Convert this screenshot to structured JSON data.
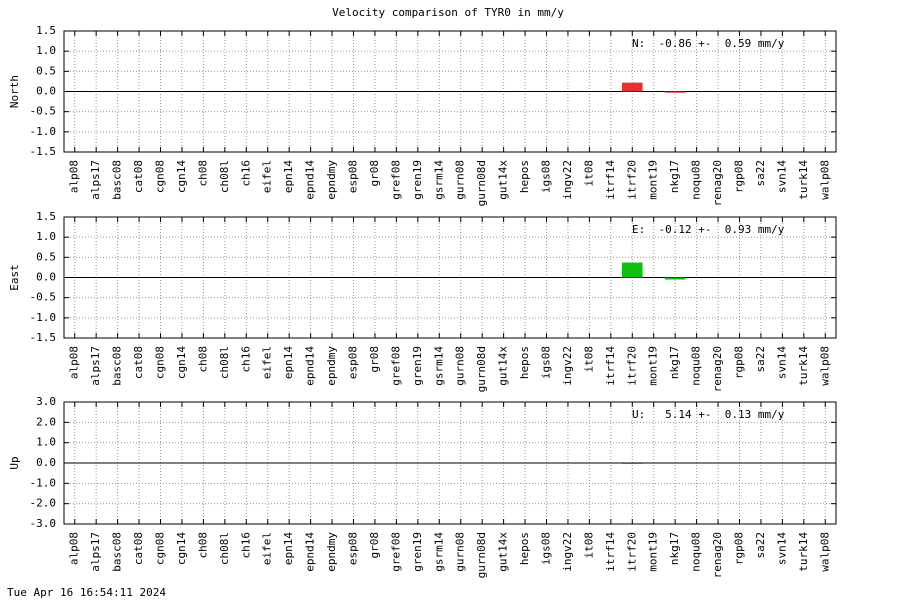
{
  "title": "Velocity comparison of TYR0 in mm/y",
  "timestamp": "Tue Apr 16 16:54:11 2024",
  "chart_data": [
    {
      "type": "bar",
      "ylabel": "North",
      "annotation": "N:  -0.86 +-  0.59 mm/y",
      "color": "#e83030",
      "grid": true,
      "categories": [
        "alp08",
        "alps17",
        "basc08",
        "cat08",
        "cgn08",
        "cgn14",
        "ch08",
        "ch08l",
        "ch16",
        "eifel",
        "epn14",
        "epnd14",
        "epndmy",
        "esp08",
        "gr08",
        "gref08",
        "gren19",
        "gsrm14",
        "gurn08",
        "gurn08d",
        "gut14x",
        "hepos",
        "igs08",
        "ingv22",
        "it08",
        "itrf14",
        "itrf20",
        "mont19",
        "nkg17",
        "noqu08",
        "renag20",
        "rgp08",
        "sa22",
        "svn14",
        "turk14",
        "walp08"
      ],
      "values": [
        null,
        null,
        null,
        null,
        null,
        null,
        null,
        null,
        null,
        null,
        null,
        null,
        null,
        null,
        null,
        null,
        null,
        null,
        null,
        null,
        null,
        null,
        null,
        null,
        null,
        null,
        0.22,
        null,
        -0.03,
        null,
        null,
        null,
        null,
        null,
        null,
        null
      ],
      "ylim": [
        -1.5,
        1.5
      ],
      "yticks": [
        1.5,
        {
          "value": 1.0,
          "label": "1.0"
        },
        0.5,
        {
          "value": 0.0,
          "label": "0.0"
        },
        -0.5,
        {
          "value": -1.0,
          "label": "-1.0"
        },
        -1.5
      ]
    },
    {
      "type": "bar",
      "ylabel": "East",
      "annotation": "E:  -0.12 +-  0.93 mm/y",
      "color": "#10c010",
      "grid": true,
      "categories": [
        "alp08",
        "alps17",
        "basc08",
        "cat08",
        "cgn08",
        "cgn14",
        "ch08",
        "ch08l",
        "ch16",
        "eifel",
        "epn14",
        "epnd14",
        "epndmy",
        "esp08",
        "gr08",
        "gref08",
        "gren19",
        "gsrm14",
        "gurn08",
        "gurn08d",
        "gut14x",
        "hepos",
        "igs08",
        "ingv22",
        "it08",
        "itrf14",
        "itrf20",
        "mont19",
        "nkg17",
        "noqu08",
        "renag20",
        "rgp08",
        "sa22",
        "svn14",
        "turk14",
        "walp08"
      ],
      "values": [
        null,
        null,
        null,
        null,
        null,
        null,
        null,
        null,
        null,
        null,
        null,
        null,
        null,
        null,
        null,
        null,
        null,
        null,
        null,
        null,
        null,
        null,
        null,
        null,
        null,
        null,
        0.37,
        null,
        -0.05,
        null,
        null,
        null,
        null,
        null,
        null,
        null
      ],
      "ylim": [
        -1.5,
        1.5
      ],
      "yticks": [
        1.5,
        {
          "value": 1.0,
          "label": "1.0"
        },
        0.5,
        {
          "value": 0.0,
          "label": "0.0"
        },
        -0.5,
        {
          "value": -1.0,
          "label": "-1.0"
        },
        -1.5
      ]
    },
    {
      "type": "bar",
      "ylabel": "Up",
      "annotation": "U:   5.14 +-  0.13 mm/y",
      "color": "#1f6fb0",
      "grid": true,
      "categories": [
        "alp08",
        "alps17",
        "basc08",
        "cat08",
        "cgn08",
        "cgn14",
        "ch08",
        "ch08l",
        "ch16",
        "eifel",
        "epn14",
        "epnd14",
        "epndmy",
        "esp08",
        "gr08",
        "gref08",
        "gren19",
        "gsrm14",
        "gurn08",
        "gurn08d",
        "gut14x",
        "hepos",
        "igs08",
        "ingv22",
        "it08",
        "itrf14",
        "itrf20",
        "mont19",
        "nkg17",
        "noqu08",
        "renag20",
        "rgp08",
        "sa22",
        "svn14",
        "turk14",
        "walp08"
      ],
      "values": [
        null,
        null,
        null,
        null,
        null,
        null,
        null,
        null,
        null,
        null,
        null,
        null,
        null,
        null,
        null,
        null,
        null,
        null,
        null,
        null,
        null,
        null,
        null,
        null,
        null,
        null,
        -0.03,
        null,
        null,
        null,
        null,
        null,
        null,
        null,
        null,
        null
      ],
      "ylim": [
        -3.0,
        3.0
      ],
      "yticks": [
        {
          "value": 3.0,
          "label": "3.0"
        },
        {
          "value": 2.0,
          "label": "2.0"
        },
        {
          "value": 1.0,
          "label": "1.0"
        },
        {
          "value": 0.0,
          "label": "0.0"
        },
        {
          "value": -1.0,
          "label": "-1.0"
        },
        {
          "value": -2.0,
          "label": "-2.0"
        },
        {
          "value": -3.0,
          "label": "-3.0"
        }
      ]
    }
  ]
}
